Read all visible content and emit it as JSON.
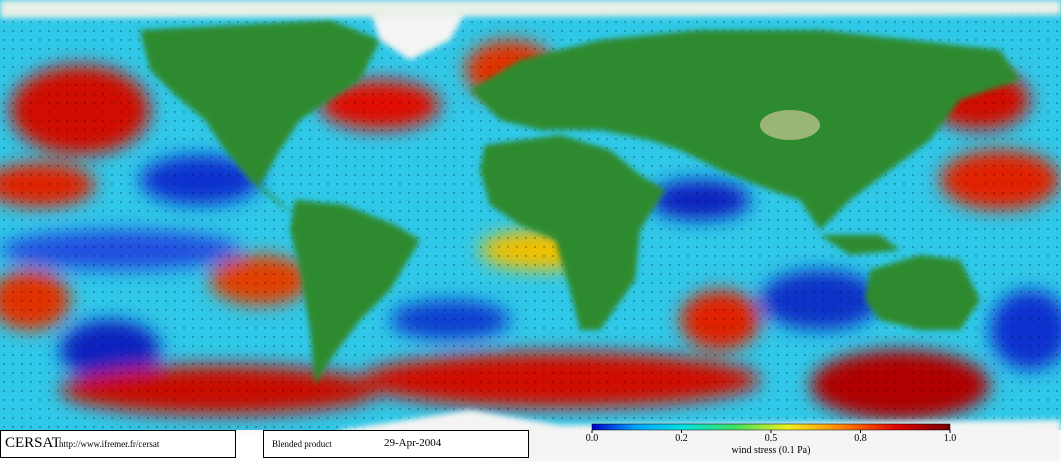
{
  "footer": {
    "logo": "CERSAT",
    "url": "http://www.ifremer.fr/cersat",
    "product": "Blended product",
    "date": "29-Apr-2004"
  },
  "colorbar": {
    "label": "wind stress (0.1 Pa)",
    "ticks": [
      {
        "value": 0,
        "label": "0.0"
      },
      0.2,
      0.5,
      0.8,
      {
        "value": 1,
        "label": "1.0"
      }
    ]
  }
}
